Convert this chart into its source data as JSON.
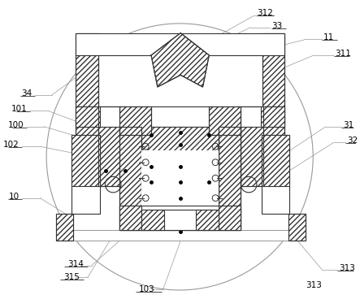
{
  "bg_color": "#ffffff",
  "lc": "#999999",
  "dc": "#333333",
  "fig_width": 4.43,
  "fig_height": 3.79,
  "dpi": 100
}
